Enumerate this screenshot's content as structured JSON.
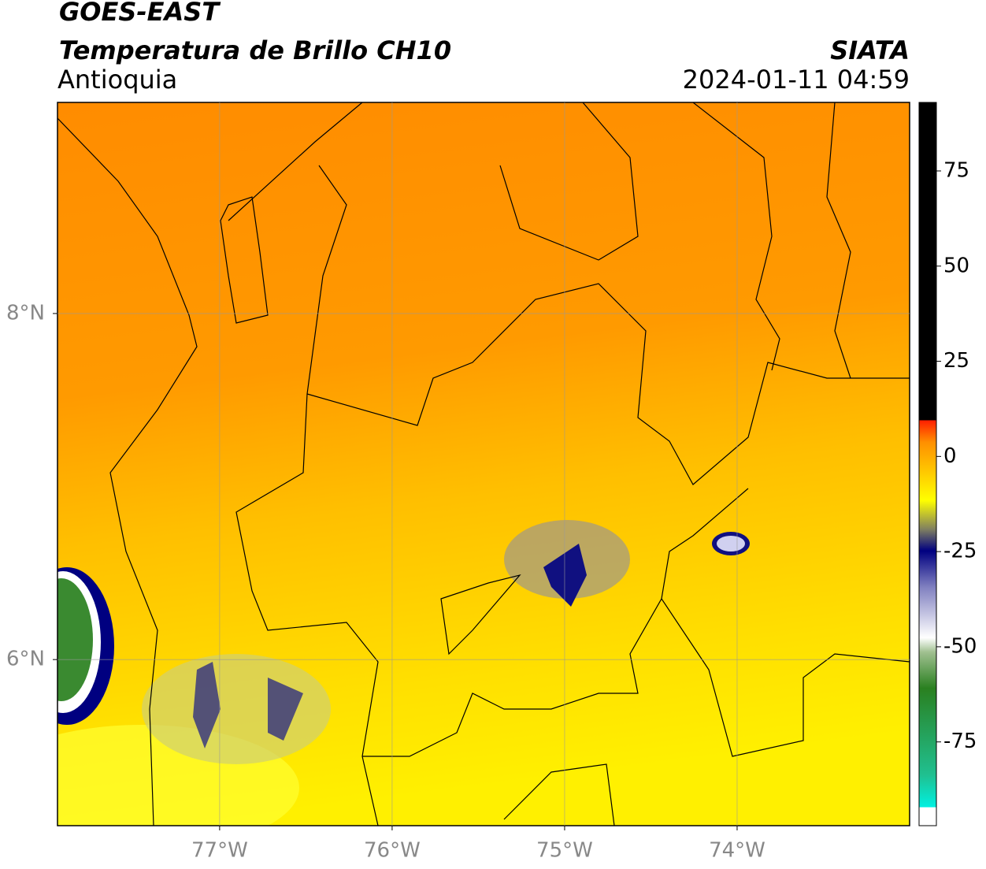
{
  "header": {
    "title": "GOES-EAST",
    "subtitle": "Temperatura de Brillo CH10",
    "region": "Antioquia",
    "source": "SIATA",
    "datetime": "2024-01-11 04:59"
  },
  "map": {
    "xlim": [
      -77.94,
      -73.0
    ],
    "ylim": [
      5.04,
      9.22
    ],
    "xticks": [
      {
        "value": -77,
        "label": "77°W"
      },
      {
        "value": -76,
        "label": "76°W"
      },
      {
        "value": -75,
        "label": "75°W"
      },
      {
        "value": -74,
        "label": "74°W"
      }
    ],
    "yticks": [
      {
        "value": 8,
        "label": "8°N"
      },
      {
        "value": 6,
        "label": "6°N"
      }
    ],
    "grid": true
  },
  "colorbar": {
    "lim": [
      -97,
      93
    ],
    "ticks": [
      75,
      50,
      25,
      0,
      -25,
      -50,
      -75
    ]
  }
}
